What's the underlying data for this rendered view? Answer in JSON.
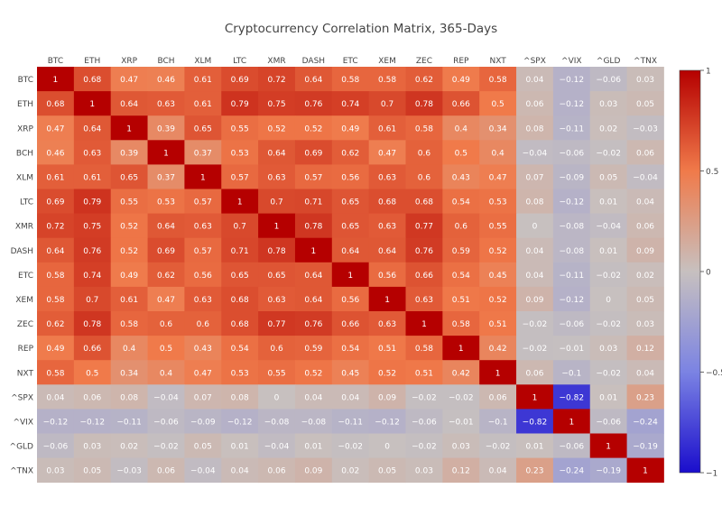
{
  "chart_data": {
    "type": "heatmap",
    "title": "Cryptocurrency Correlation Matrix, 365-Days",
    "labels": [
      "BTC",
      "ETH",
      "XRP",
      "BCH",
      "XLM",
      "LTC",
      "XMR",
      "DASH",
      "ETC",
      "XEM",
      "ZEC",
      "REP",
      "NXT",
      "^SPX",
      "^VIX",
      "^GLD",
      "^TNX"
    ],
    "values": [
      [
        1,
        0.68,
        0.47,
        0.46,
        0.61,
        0.69,
        0.72,
        0.64,
        0.58,
        0.58,
        0.62,
        0.49,
        0.58,
        0.04,
        -0.12,
        -0.06,
        0.03
      ],
      [
        0.68,
        1,
        0.64,
        0.63,
        0.61,
        0.79,
        0.75,
        0.76,
        0.74,
        0.7,
        0.78,
        0.66,
        0.5,
        0.06,
        -0.12,
        0.03,
        0.05
      ],
      [
        0.47,
        0.64,
        1,
        0.39,
        0.65,
        0.55,
        0.52,
        0.52,
        0.49,
        0.61,
        0.58,
        0.4,
        0.34,
        0.08,
        -0.11,
        0.02,
        -0.03
      ],
      [
        0.46,
        0.63,
        0.39,
        1,
        0.37,
        0.53,
        0.64,
        0.69,
        0.62,
        0.47,
        0.6,
        0.5,
        0.4,
        -0.04,
        -0.06,
        -0.02,
        0.06
      ],
      [
        0.61,
        0.61,
        0.65,
        0.37,
        1,
        0.57,
        0.63,
        0.57,
        0.56,
        0.63,
        0.6,
        0.43,
        0.47,
        0.07,
        -0.09,
        0.05,
        -0.04
      ],
      [
        0.69,
        0.79,
        0.55,
        0.53,
        0.57,
        1,
        0.7,
        0.71,
        0.65,
        0.68,
        0.68,
        0.54,
        0.53,
        0.08,
        -0.12,
        0.01,
        0.04
      ],
      [
        0.72,
        0.75,
        0.52,
        0.64,
        0.63,
        0.7,
        1,
        0.78,
        0.65,
        0.63,
        0.77,
        0.6,
        0.55,
        0,
        -0.08,
        -0.04,
        0.06
      ],
      [
        0.64,
        0.76,
        0.52,
        0.69,
        0.57,
        0.71,
        0.78,
        1,
        0.64,
        0.64,
        0.76,
        0.59,
        0.52,
        0.04,
        -0.08,
        0.01,
        0.09
      ],
      [
        0.58,
        0.74,
        0.49,
        0.62,
        0.56,
        0.65,
        0.65,
        0.64,
        1,
        0.56,
        0.66,
        0.54,
        0.45,
        0.04,
        -0.11,
        -0.02,
        0.02
      ],
      [
        0.58,
        0.7,
        0.61,
        0.47,
        0.63,
        0.68,
        0.63,
        0.64,
        0.56,
        1,
        0.63,
        0.51,
        0.52,
        0.09,
        -0.12,
        0,
        0.05
      ],
      [
        0.62,
        0.78,
        0.58,
        0.6,
        0.6,
        0.68,
        0.77,
        0.76,
        0.66,
        0.63,
        1,
        0.58,
        0.51,
        -0.02,
        -0.06,
        -0.02,
        0.03
      ],
      [
        0.49,
        0.66,
        0.4,
        0.5,
        0.43,
        0.54,
        0.6,
        0.59,
        0.54,
        0.51,
        0.58,
        1,
        0.42,
        -0.02,
        -0.01,
        0.03,
        0.12
      ],
      [
        0.58,
        0.5,
        0.34,
        0.4,
        0.47,
        0.53,
        0.55,
        0.52,
        0.45,
        0.52,
        0.51,
        0.42,
        1,
        0.06,
        -0.1,
        -0.02,
        0.04
      ],
      [
        0.04,
        0.06,
        0.08,
        -0.04,
        0.07,
        0.08,
        0,
        0.04,
        0.04,
        0.09,
        -0.02,
        -0.02,
        0.06,
        1,
        -0.82,
        0.01,
        0.23
      ],
      [
        -0.12,
        -0.12,
        -0.11,
        -0.06,
        -0.09,
        -0.12,
        -0.08,
        -0.08,
        -0.11,
        -0.12,
        -0.06,
        -0.01,
        -0.1,
        -0.82,
        1,
        -0.06,
        -0.24
      ],
      [
        -0.06,
        0.03,
        0.02,
        -0.02,
        0.05,
        0.01,
        -0.04,
        0.01,
        -0.02,
        0,
        -0.02,
        0.03,
        -0.02,
        0.01,
        -0.06,
        1,
        -0.19
      ],
      [
        0.03,
        0.05,
        -0.03,
        0.06,
        -0.04,
        0.04,
        0.06,
        0.09,
        0.02,
        0.05,
        0.03,
        0.12,
        0.04,
        0.23,
        -0.24,
        -0.19,
        1
      ]
    ],
    "zlim": [
      -1,
      1
    ],
    "colorbar_ticks": [
      1,
      0.5,
      0,
      -0.5,
      -1
    ],
    "colorbar_tick_labels": [
      "1",
      "0.5",
      "0",
      "−0.5",
      "−1"
    ],
    "colorscale": [
      {
        "stop": 0.0,
        "color": "#1a0dcc"
      },
      {
        "stop": 0.25,
        "color": "#7b83e3"
      },
      {
        "stop": 0.5,
        "color": "#c7c0bf"
      },
      {
        "stop": 0.75,
        "color": "#f07a4a"
      },
      {
        "stop": 1.0,
        "color": "#b50000"
      }
    ],
    "x_axis_position": "top",
    "y_axis_order": "top-to-bottom"
  }
}
